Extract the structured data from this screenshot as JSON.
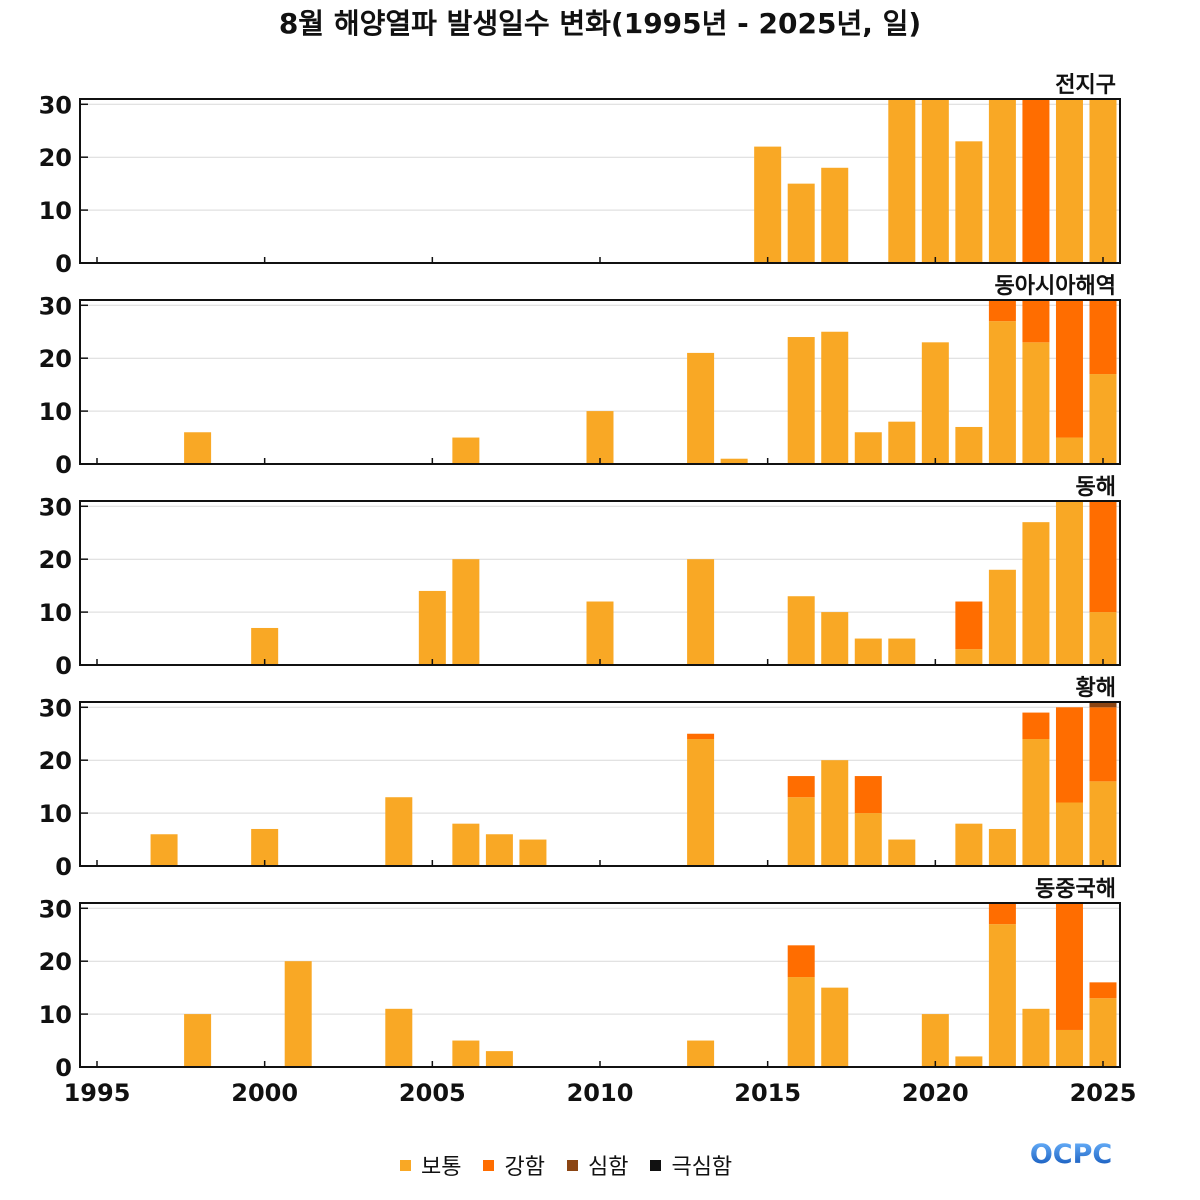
{
  "title": "8월 해양열파 발생일수 변화(1995년 - 2025년, 일)",
  "logo_text": "OCPC",
  "x_ticks": [
    "1995",
    "2000",
    "2005",
    "2010",
    "2015",
    "2020",
    "2025"
  ],
  "y_ticks": [
    "0",
    "10",
    "20",
    "30"
  ],
  "legend": [
    {
      "label": "보통",
      "color": "#f9a825"
    },
    {
      "label": "강함",
      "color": "#ff6d00"
    },
    {
      "label": "심함",
      "color": "#8b4513"
    },
    {
      "label": "극심함",
      "color": "#111111"
    }
  ],
  "chart_data": {
    "type": "bar",
    "stacked": true,
    "xlim": [
      1995,
      2025
    ],
    "ylim": [
      0,
      31
    ],
    "x_ticks": [
      1995,
      2000,
      2005,
      2010,
      2015,
      2020,
      2025
    ],
    "y_ticks": [
      0,
      10,
      20,
      30
    ],
    "grid": "horizontal",
    "legend_position": "bottom-center",
    "categories": [
      "보통",
      "강함",
      "심함",
      "극심함"
    ],
    "panels": [
      {
        "name": "전지구",
        "bars": [
          {
            "year": 2015,
            "values": [
              22,
              0,
              0,
              0
            ]
          },
          {
            "year": 2016,
            "values": [
              15,
              0,
              0,
              0
            ]
          },
          {
            "year": 2017,
            "values": [
              18,
              0,
              0,
              0
            ]
          },
          {
            "year": 2019,
            "values": [
              31,
              0,
              0,
              0
            ]
          },
          {
            "year": 2020,
            "values": [
              31,
              0,
              0,
              0
            ]
          },
          {
            "year": 2021,
            "values": [
              23,
              0,
              0,
              0
            ]
          },
          {
            "year": 2022,
            "values": [
              31,
              0,
              0,
              0
            ]
          },
          {
            "year": 2023,
            "values": [
              0,
              31,
              0,
              0
            ]
          },
          {
            "year": 2024,
            "values": [
              31,
              0,
              0,
              0
            ]
          },
          {
            "year": 2025,
            "values": [
              31,
              0,
              0,
              0
            ]
          }
        ]
      },
      {
        "name": "동아시아해역",
        "bars": [
          {
            "year": 1998,
            "values": [
              6,
              0,
              0,
              0
            ]
          },
          {
            "year": 2006,
            "values": [
              5,
              0,
              0,
              0
            ]
          },
          {
            "year": 2010,
            "values": [
              10,
              0,
              0,
              0
            ]
          },
          {
            "year": 2013,
            "values": [
              21,
              0,
              0,
              0
            ]
          },
          {
            "year": 2014,
            "values": [
              1,
              0,
              0,
              0
            ]
          },
          {
            "year": 2016,
            "values": [
              24,
              0,
              0,
              0
            ]
          },
          {
            "year": 2017,
            "values": [
              25,
              0,
              0,
              0
            ]
          },
          {
            "year": 2018,
            "values": [
              6,
              0,
              0,
              0
            ]
          },
          {
            "year": 2019,
            "values": [
              8,
              0,
              0,
              0
            ]
          },
          {
            "year": 2020,
            "values": [
              23,
              0,
              0,
              0
            ]
          },
          {
            "year": 2021,
            "values": [
              7,
              0,
              0,
              0
            ]
          },
          {
            "year": 2022,
            "values": [
              27,
              4,
              0,
              0
            ]
          },
          {
            "year": 2023,
            "values": [
              23,
              8,
              0,
              0
            ]
          },
          {
            "year": 2024,
            "values": [
              5,
              26,
              0,
              0
            ]
          },
          {
            "year": 2025,
            "values": [
              17,
              14,
              0,
              0
            ]
          }
        ]
      },
      {
        "name": "동해",
        "bars": [
          {
            "year": 2000,
            "values": [
              7,
              0,
              0,
              0
            ]
          },
          {
            "year": 2005,
            "values": [
              14,
              0,
              0,
              0
            ]
          },
          {
            "year": 2006,
            "values": [
              20,
              0,
              0,
              0
            ]
          },
          {
            "year": 2010,
            "values": [
              12,
              0,
              0,
              0
            ]
          },
          {
            "year": 2013,
            "values": [
              20,
              0,
              0,
              0
            ]
          },
          {
            "year": 2016,
            "values": [
              13,
              0,
              0,
              0
            ]
          },
          {
            "year": 2017,
            "values": [
              10,
              0,
              0,
              0
            ]
          },
          {
            "year": 2018,
            "values": [
              5,
              0,
              0,
              0
            ]
          },
          {
            "year": 2019,
            "values": [
              5,
              0,
              0,
              0
            ]
          },
          {
            "year": 2021,
            "values": [
              3,
              9,
              0,
              0
            ]
          },
          {
            "year": 2022,
            "values": [
              18,
              0,
              0,
              0
            ]
          },
          {
            "year": 2023,
            "values": [
              27,
              0,
              0,
              0
            ]
          },
          {
            "year": 2024,
            "values": [
              31,
              0,
              0,
              0
            ]
          },
          {
            "year": 2025,
            "values": [
              10,
              21,
              0,
              0
            ]
          }
        ]
      },
      {
        "name": "황해",
        "bars": [
          {
            "year": 1997,
            "values": [
              6,
              0,
              0,
              0
            ]
          },
          {
            "year": 2000,
            "values": [
              7,
              0,
              0,
              0
            ]
          },
          {
            "year": 2004,
            "values": [
              13,
              0,
              0,
              0
            ]
          },
          {
            "year": 2006,
            "values": [
              8,
              0,
              0,
              0
            ]
          },
          {
            "year": 2007,
            "values": [
              6,
              0,
              0,
              0
            ]
          },
          {
            "year": 2008,
            "values": [
              5,
              0,
              0,
              0
            ]
          },
          {
            "year": 2013,
            "values": [
              24,
              1,
              0,
              0
            ]
          },
          {
            "year": 2016,
            "values": [
              13,
              4,
              0,
              0
            ]
          },
          {
            "year": 2017,
            "values": [
              20,
              0,
              0,
              0
            ]
          },
          {
            "year": 2018,
            "values": [
              10,
              7,
              0,
              0
            ]
          },
          {
            "year": 2019,
            "values": [
              5,
              0,
              0,
              0
            ]
          },
          {
            "year": 2021,
            "values": [
              8,
              0,
              0,
              0
            ]
          },
          {
            "year": 2022,
            "values": [
              7,
              0,
              0,
              0
            ]
          },
          {
            "year": 2023,
            "values": [
              24,
              5,
              0,
              0
            ]
          },
          {
            "year": 2024,
            "values": [
              12,
              18,
              0,
              0
            ]
          },
          {
            "year": 2025,
            "values": [
              16,
              14,
              1,
              0
            ]
          }
        ]
      },
      {
        "name": "동중국해",
        "bars": [
          {
            "year": 1998,
            "values": [
              10,
              0,
              0,
              0
            ]
          },
          {
            "year": 2001,
            "values": [
              20,
              0,
              0,
              0
            ]
          },
          {
            "year": 2004,
            "values": [
              11,
              0,
              0,
              0
            ]
          },
          {
            "year": 2006,
            "values": [
              5,
              0,
              0,
              0
            ]
          },
          {
            "year": 2007,
            "values": [
              3,
              0,
              0,
              0
            ]
          },
          {
            "year": 2013,
            "values": [
              5,
              0,
              0,
              0
            ]
          },
          {
            "year": 2016,
            "values": [
              17,
              6,
              0,
              0
            ]
          },
          {
            "year": 2017,
            "values": [
              15,
              0,
              0,
              0
            ]
          },
          {
            "year": 2020,
            "values": [
              10,
              0,
              0,
              0
            ]
          },
          {
            "year": 2021,
            "values": [
              2,
              0,
              0,
              0
            ]
          },
          {
            "year": 2022,
            "values": [
              27,
              4,
              0,
              0
            ]
          },
          {
            "year": 2023,
            "values": [
              11,
              0,
              0,
              0
            ]
          },
          {
            "year": 2024,
            "values": [
              7,
              24,
              0,
              0
            ]
          },
          {
            "year": 2025,
            "values": [
              13,
              3,
              0,
              0
            ]
          }
        ]
      }
    ]
  }
}
